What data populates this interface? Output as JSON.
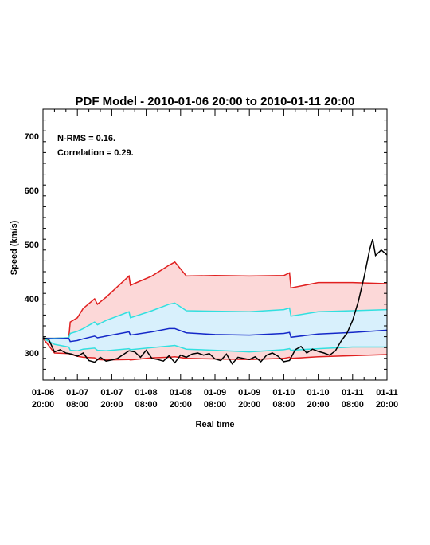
{
  "chart_data": {
    "type": "area",
    "title": "PDF Model - 2010-01-06 20:00 to 2010-01-11 20:00",
    "xlabel": "Real time",
    "ylabel": "Speed (km/s)",
    "xlim": [
      "2010-01-06 20:00",
      "2010-01-11 20:00"
    ],
    "ylim": [
      250,
      750
    ],
    "y_ticks": [
      300,
      400,
      500,
      600,
      700
    ],
    "x_ticks": [
      {
        "t": "2010-01-06 20:00",
        "line1": "01-06",
        "line2": "20:00"
      },
      {
        "t": "2010-01-07 08:00",
        "line1": "01-07",
        "line2": "08:00"
      },
      {
        "t": "2010-01-07 20:00",
        "line1": "01-07",
        "line2": "20:00"
      },
      {
        "t": "2010-01-08 08:00",
        "line1": "01-08",
        "line2": "08:00"
      },
      {
        "t": "2010-01-08 20:00",
        "line1": "01-08",
        "line2": "20:00"
      },
      {
        "t": "2010-01-09 08:00",
        "line1": "01-09",
        "line2": "08:00"
      },
      {
        "t": "2010-01-09 20:00",
        "line1": "01-09",
        "line2": "20:00"
      },
      {
        "t": "2010-01-10 08:00",
        "line1": "01-10",
        "line2": "08:00"
      },
      {
        "t": "2010-01-10 20:00",
        "line1": "01-10",
        "line2": "20:00"
      },
      {
        "t": "2010-01-11 08:00",
        "line1": "01-11",
        "line2": "08:00"
      },
      {
        "t": "2010-01-11 20:00",
        "line1": "01-11",
        "line2": "20:00"
      }
    ],
    "annotations": [
      "N-RMS = 0.16.",
      "Correlation = 0.29."
    ],
    "colors": {
      "outer_band": "#fcd8d8",
      "inner_band": "#d8f0fc",
      "outer_line": "#e02020",
      "inner_line": "#30e0e0",
      "median_line": "#1428c8",
      "observed_line": "#000000",
      "axes": "#000000"
    },
    "series": [
      {
        "key": "upper_outer",
        "x": [
          "2010-01-06 20:00",
          "2010-01-07 00:00",
          "2010-01-07 05:00",
          "2010-01-07 05:30",
          "2010-01-07 08:00",
          "2010-01-07 10:00",
          "2010-01-07 14:00",
          "2010-01-07 15:00",
          "2010-01-07 18:00",
          "2010-01-08 02:00",
          "2010-01-08 02:30",
          "2010-01-08 10:00",
          "2010-01-08 16:00",
          "2010-01-08 18:00",
          "2010-01-08 22:00",
          "2010-01-09 08:00",
          "2010-01-09 20:00",
          "2010-01-10 08:00",
          "2010-01-10 10:00",
          "2010-01-10 10:30",
          "2010-01-10 20:00",
          "2010-01-11 08:00",
          "2010-01-11 20:00"
        ],
        "y": [
          327,
          327,
          328,
          357,
          365,
          382,
          400,
          390,
          403,
          442,
          425,
          442,
          462,
          468,
          442,
          443,
          442,
          443,
          448,
          420,
          430,
          430,
          428
        ]
      },
      {
        "key": "upper_inner",
        "x": [
          "2010-01-06 20:00",
          "2010-01-07 00:00",
          "2010-01-07 05:00",
          "2010-01-07 05:30",
          "2010-01-07 08:00",
          "2010-01-07 10:00",
          "2010-01-07 14:00",
          "2010-01-07 15:00",
          "2010-01-07 18:00",
          "2010-01-08 02:00",
          "2010-01-08 02:30",
          "2010-01-08 10:00",
          "2010-01-08 16:00",
          "2010-01-08 18:00",
          "2010-01-08 22:00",
          "2010-01-09 08:00",
          "2010-01-09 20:00",
          "2010-01-10 08:00",
          "2010-01-10 10:00",
          "2010-01-10 10:30",
          "2010-01-10 20:00",
          "2010-01-11 08:00",
          "2010-01-11 20:00"
        ],
        "y": [
          327,
          327,
          328,
          336,
          340,
          345,
          357,
          352,
          360,
          376,
          365,
          378,
          390,
          392,
          378,
          377,
          376,
          380,
          383,
          368,
          376,
          378,
          380
        ]
      },
      {
        "key": "median",
        "x": [
          "2010-01-06 20:00",
          "2010-01-07 00:00",
          "2010-01-07 05:00",
          "2010-01-07 05:30",
          "2010-01-07 08:00",
          "2010-01-07 10:00",
          "2010-01-07 14:00",
          "2010-01-07 15:00",
          "2010-01-07 18:00",
          "2010-01-08 02:00",
          "2010-01-08 02:30",
          "2010-01-08 10:00",
          "2010-01-08 16:00",
          "2010-01-08 18:00",
          "2010-01-08 22:00",
          "2010-01-09 08:00",
          "2010-01-09 20:00",
          "2010-01-10 08:00",
          "2010-01-10 10:00",
          "2010-01-10 10:30",
          "2010-01-10 20:00",
          "2010-01-11 08:00",
          "2010-01-11 20:00"
        ],
        "y": [
          327,
          326,
          327,
          321,
          323,
          326,
          331,
          328,
          331,
          339,
          333,
          339,
          345,
          345,
          337,
          334,
          333,
          336,
          338,
          329,
          335,
          338,
          342
        ]
      },
      {
        "key": "lower_inner",
        "x": [
          "2010-01-06 20:00",
          "2010-01-07 00:00",
          "2010-01-07 05:00",
          "2010-01-07 05:30",
          "2010-01-07 08:00",
          "2010-01-07 10:00",
          "2010-01-07 14:00",
          "2010-01-07 15:00",
          "2010-01-07 18:00",
          "2010-01-08 02:00",
          "2010-01-08 02:30",
          "2010-01-08 10:00",
          "2010-01-08 16:00",
          "2010-01-08 18:00",
          "2010-01-08 22:00",
          "2010-01-09 08:00",
          "2010-01-09 20:00",
          "2010-01-10 08:00",
          "2010-01-10 10:00",
          "2010-01-10 10:30",
          "2010-01-10 20:00",
          "2010-01-11 08:00",
          "2010-01-11 20:00"
        ],
        "y": [
          327,
          316,
          311,
          305,
          304,
          307,
          309,
          305,
          304,
          308,
          306,
          310,
          313,
          314,
          307,
          305,
          302,
          306,
          308,
          305,
          308,
          311,
          311
        ]
      },
      {
        "key": "lower_outer",
        "x": [
          "2010-01-06 20:00",
          "2010-01-07 00:00",
          "2010-01-07 05:00",
          "2010-01-07 05:30",
          "2010-01-07 08:00",
          "2010-01-07 10:00",
          "2010-01-07 14:00",
          "2010-01-07 15:00",
          "2010-01-07 18:00",
          "2010-01-08 02:00",
          "2010-01-08 02:30",
          "2010-01-08 10:00",
          "2010-01-08 16:00",
          "2010-01-08 18:00",
          "2010-01-08 22:00",
          "2010-01-09 08:00",
          "2010-01-09 20:00",
          "2010-01-10 08:00",
          "2010-01-10 10:00",
          "2010-01-10 10:30",
          "2010-01-10 20:00",
          "2010-01-11 08:00",
          "2010-01-11 20:00"
        ],
        "y": [
          327,
          300,
          299,
          298,
          294,
          292,
          291,
          288,
          287,
          288,
          287,
          291,
          292,
          293,
          290,
          289,
          288,
          290,
          292,
          290,
          293,
          295,
          297
        ]
      },
      {
        "key": "observed",
        "x": [
          "2010-01-06 20:00",
          "2010-01-06 22:00",
          "2010-01-07 00:00",
          "2010-01-07 02:00",
          "2010-01-07 04:00",
          "2010-01-07 06:00",
          "2010-01-07 08:00",
          "2010-01-07 10:00",
          "2010-01-07 12:00",
          "2010-01-07 14:00",
          "2010-01-07 16:00",
          "2010-01-07 18:00",
          "2010-01-07 20:00",
          "2010-01-07 22:00",
          "2010-01-08 00:00",
          "2010-01-08 02:00",
          "2010-01-08 04:00",
          "2010-01-08 06:00",
          "2010-01-08 08:00",
          "2010-01-08 10:00",
          "2010-01-08 12:00",
          "2010-01-08 14:00",
          "2010-01-08 16:00",
          "2010-01-08 18:00",
          "2010-01-08 20:00",
          "2010-01-08 22:00",
          "2010-01-09 00:00",
          "2010-01-09 02:00",
          "2010-01-09 04:00",
          "2010-01-09 06:00",
          "2010-01-09 08:00",
          "2010-01-09 10:00",
          "2010-01-09 12:00",
          "2010-01-09 14:00",
          "2010-01-09 16:00",
          "2010-01-09 18:00",
          "2010-01-09 20:00",
          "2010-01-09 22:00",
          "2010-01-10 00:00",
          "2010-01-10 02:00",
          "2010-01-10 04:00",
          "2010-01-10 06:00",
          "2010-01-10 08:00",
          "2010-01-10 10:00",
          "2010-01-10 12:00",
          "2010-01-10 14:00",
          "2010-01-10 16:00",
          "2010-01-10 18:00",
          "2010-01-10 20:00",
          "2010-01-10 22:00",
          "2010-01-11 00:00",
          "2010-01-11 02:00",
          "2010-01-11 04:00",
          "2010-01-11 06:00",
          "2010-01-11 08:00",
          "2010-01-11 10:00",
          "2010-01-11 12:00",
          "2010-01-11 14:00",
          "2010-01-11 15:00",
          "2010-01-11 16:00",
          "2010-01-11 18:00",
          "2010-01-11 20:00"
        ],
        "y": [
          328,
          325,
          302,
          306,
          300,
          298,
          294,
          300,
          286,
          283,
          292,
          285,
          287,
          290,
          297,
          304,
          302,
          292,
          305,
          290,
          288,
          285,
          295,
          282,
          296,
          292,
          298,
          300,
          296,
          299,
          289,
          286,
          298,
          280,
          292,
          290,
          288,
          293,
          284,
          296,
          300,
          294,
          284,
          286,
          306,
          312,
          300,
          307,
          303,
          300,
          296,
          304,
          322,
          336,
          360,
          395,
          440,
          492,
          510,
          480,
          490,
          481
        ]
      }
    ]
  }
}
